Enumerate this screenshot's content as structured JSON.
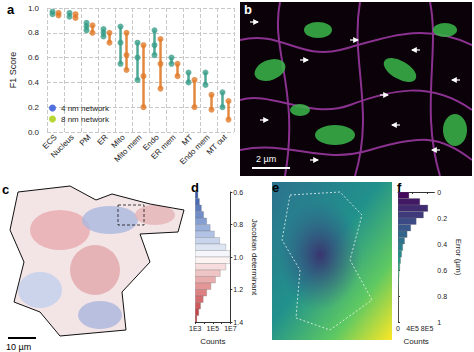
{
  "chart_data": [
    {
      "type": "scatter",
      "title": "a",
      "ylabel": "F1 Score",
      "categories": [
        "ECS",
        "Nucleus",
        "PM",
        "ER",
        "Mito",
        "Mito mem",
        "Endo",
        "ER mem",
        "MT",
        "Endo mem",
        "MT out"
      ],
      "series": [
        {
          "name": "4 nm network",
          "color": "#3a9e8a",
          "marker": "circle",
          "values": [
            [
              0.97,
              0.95
            ],
            [
              0.96,
              0.93
            ],
            [
              0.88,
              0.85,
              0.82
            ],
            [
              0.83,
              0.8,
              0.77
            ],
            [
              0.85,
              0.72,
              0.55
            ],
            [
              0.72,
              0.6,
              0.42
            ],
            [
              0.82,
              0.7,
              0.62
            ],
            [
              0.6,
              0.55
            ],
            [
              0.48,
              0.4
            ],
            [
              0.48,
              0.38
            ],
            [
              0.32,
              0.2
            ]
          ]
        },
        {
          "name": "8 nm network",
          "color": "#e07b2a",
          "marker": "circle",
          "values": [
            [
              0.96,
              0.94
            ],
            [
              0.95,
              0.92
            ],
            [
              0.86,
              0.8
            ],
            [
              0.8,
              0.72
            ],
            [
              0.8,
              0.62,
              0.5
            ],
            [
              0.7,
              0.45,
              0.2
            ],
            [
              0.75,
              0.55,
              0.35
            ],
            [
              0.55,
              0.45
            ],
            [
              0.42,
              0.2
            ],
            [
              0.3,
              0.18
            ],
            [
              0.25,
              0.1
            ]
          ]
        }
      ],
      "ylim": [
        0,
        1
      ],
      "yticks": [
        {
          "value": 0,
          "label": "0.0"
        },
        0.2,
        0.4,
        0.6,
        0.8,
        {
          "value": 1,
          "label": "1.0"
        }
      ],
      "grid": true,
      "legend": "lower left"
    },
    {
      "type": "histogram",
      "title": "d",
      "orientation": "horizontal",
      "log": "x",
      "xlabel": "Counts",
      "ylabel": "Jacobian determinant",
      "bins": [
        0.6,
        0.64,
        0.68,
        0.72,
        0.76,
        0.8,
        0.84,
        0.88,
        0.92,
        0.96,
        1.0,
        1.04,
        1.08,
        1.12,
        1.16,
        1.2,
        1.24,
        1.28,
        1.32,
        1.36,
        1.4
      ],
      "counts": [
        2000,
        3000,
        5000,
        9000,
        20000,
        50000,
        150000,
        600000,
        3000000,
        9000000,
        9000000,
        3000000,
        700000,
        200000,
        60000,
        20000,
        8000,
        4000,
        2500,
        1500
      ],
      "xlim": [
        1000,
        10000000
      ],
      "xticks": [
        {
          "value": 1000,
          "label": "1E3"
        },
        {
          "value": 100000,
          "label": "1E5"
        },
        {
          "value": 10000000,
          "label": "1E7"
        }
      ],
      "ylim": [
        0.6,
        1.4
      ],
      "yticks": [
        0.6,
        0.8,
        {
          "value": 1,
          "label": "1.0"
        },
        1.2,
        1.4
      ]
    },
    {
      "type": "histogram",
      "title": "f",
      "orientation": "horizontal",
      "xlabel": "Counts",
      "ylabel": "Error (µm)",
      "bins": [
        0,
        0.05,
        0.1,
        0.15,
        0.2,
        0.25,
        0.3,
        0.35,
        0.4,
        0.45,
        0.5,
        0.55,
        0.6,
        0.65,
        0.7,
        0.75,
        0.8,
        0.85,
        0.9,
        0.95,
        1
      ],
      "counts": [
        300000,
        600000,
        820000,
        700000,
        500000,
        350000,
        250000,
        180000,
        130000,
        100000,
        70000,
        50000,
        30000,
        20000,
        12000,
        8000,
        5000,
        3000,
        2000,
        1000
      ],
      "xlim": [
        0,
        1000000
      ],
      "xticks": [
        0,
        {
          "value": 400000,
          "label": "4E5"
        },
        {
          "value": 800000,
          "label": "8E5"
        }
      ],
      "ylim": [
        0,
        1
      ],
      "yticks": [
        0,
        0.2,
        0.4,
        0.6,
        0.8,
        1
      ]
    }
  ],
  "images": [
    {
      "panel": "b",
      "scale_bar": "2 µm"
    },
    {
      "panel": "c",
      "scale_bar": "10 µm"
    },
    {
      "panel": "e"
    }
  ]
}
